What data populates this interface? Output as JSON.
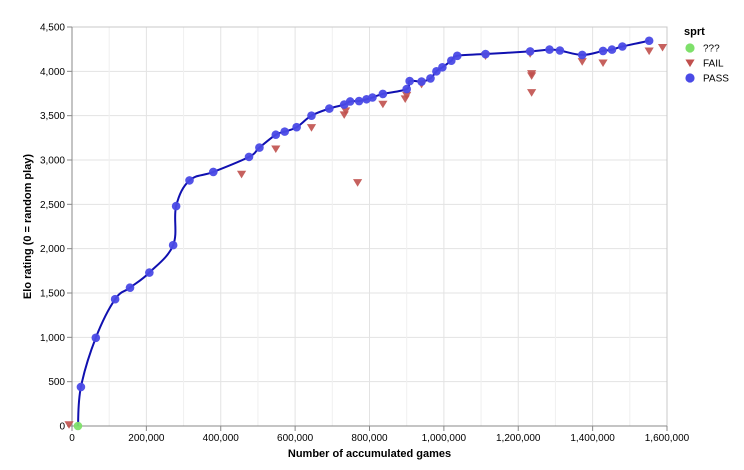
{
  "chart_data": {
    "type": "scatter",
    "xlabel": "Number of accumulated games",
    "ylabel": "Elo rating (0 = random play)",
    "xlim": [
      0,
      1600000
    ],
    "ylim": [
      0,
      4500
    ],
    "x_ticks": [
      0,
      200000,
      400000,
      600000,
      800000,
      1000000,
      1200000,
      1400000,
      1600000
    ],
    "x_tick_labels": [
      "0",
      "200,000",
      "400,000",
      "600,000",
      "800,000",
      "1,000,000",
      "1,200,000",
      "1,400,000",
      "1,600,000"
    ],
    "y_ticks": [
      0,
      500,
      1000,
      1500,
      2000,
      2500,
      3000,
      3500,
      4000,
      4500
    ],
    "y_tick_labels": [
      "0",
      "500",
      "1,000",
      "1,500",
      "2,000",
      "2,500",
      "3,000",
      "3,500",
      "4,000",
      "4,500"
    ],
    "grid": true,
    "legend": {
      "title": "sprt",
      "position": "right",
      "entries": [
        {
          "label": "???",
          "shape": "circle",
          "color": "#7ee06a"
        },
        {
          "label": "FAIL",
          "shape": "triangle-down",
          "color": "#c0504d"
        },
        {
          "label": "PASS",
          "shape": "circle",
          "color": "#4a4ae6"
        }
      ]
    },
    "line_color": "#1010b0",
    "series": [
      {
        "name": "???",
        "shape": "circle",
        "color": "#7ee06a",
        "points": [
          [
            16000,
            0
          ]
        ]
      },
      {
        "name": "PASS",
        "shape": "circle",
        "color": "#4a4ae6",
        "points": [
          [
            24000,
            440
          ],
          [
            64000,
            995
          ],
          [
            116000,
            1430
          ],
          [
            156000,
            1560
          ],
          [
            208000,
            1730
          ],
          [
            272000,
            2040
          ],
          [
            280000,
            2480
          ],
          [
            316000,
            2770
          ],
          [
            380000,
            2865
          ],
          [
            476000,
            3035
          ],
          [
            504000,
            3140
          ],
          [
            548000,
            3285
          ],
          [
            572000,
            3320
          ],
          [
            604000,
            3370
          ],
          [
            644000,
            3500
          ],
          [
            692000,
            3580
          ],
          [
            732000,
            3625
          ],
          [
            748000,
            3660
          ],
          [
            772000,
            3665
          ],
          [
            792000,
            3685
          ],
          [
            808000,
            3705
          ],
          [
            836000,
            3745
          ],
          [
            900000,
            3800
          ],
          [
            908000,
            3890
          ],
          [
            940000,
            3885
          ],
          [
            964000,
            3920
          ],
          [
            980000,
            4000
          ],
          [
            996000,
            4045
          ],
          [
            1020000,
            4120
          ],
          [
            1036000,
            4175
          ],
          [
            1112000,
            4195
          ],
          [
            1232000,
            4225
          ],
          [
            1284000,
            4245
          ],
          [
            1312000,
            4235
          ],
          [
            1372000,
            4185
          ],
          [
            1428000,
            4230
          ],
          [
            1452000,
            4245
          ],
          [
            1480000,
            4280
          ],
          [
            1552000,
            4345
          ]
        ]
      },
      {
        "name": "FAIL",
        "shape": "triangle-down",
        "color": "#c0504d",
        "points": [
          [
            -8000,
            15
          ],
          [
            456000,
            2840
          ],
          [
            548000,
            3125
          ],
          [
            644000,
            3365
          ],
          [
            732000,
            3510
          ],
          [
            736000,
            3555
          ],
          [
            768000,
            2745
          ],
          [
            836000,
            3630
          ],
          [
            896000,
            3690
          ],
          [
            900000,
            3730
          ],
          [
            940000,
            3855
          ],
          [
            1112000,
            4175
          ],
          [
            1232000,
            4200
          ],
          [
            1236000,
            3975
          ],
          [
            1236000,
            3950
          ],
          [
            1236000,
            3760
          ],
          [
            1372000,
            4110
          ],
          [
            1428000,
            4095
          ],
          [
            1552000,
            4230
          ],
          [
            1588000,
            4270
          ]
        ]
      }
    ]
  }
}
